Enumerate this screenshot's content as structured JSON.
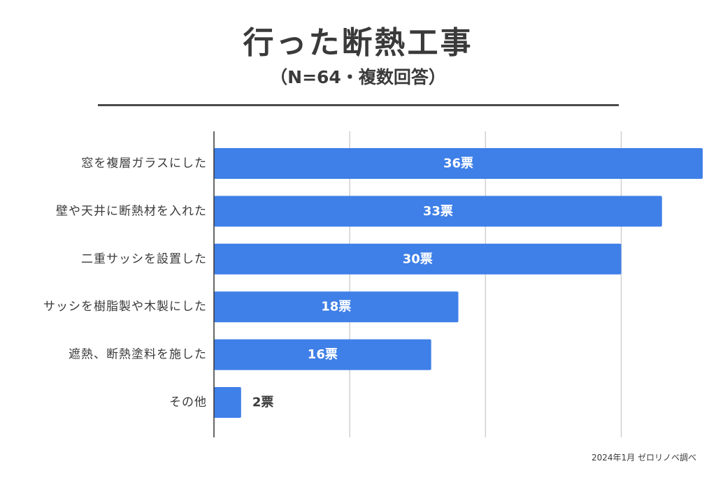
{
  "title": "行った断熱工事",
  "subtitle": "（N=64・複数回答）",
  "source": "2024年1月 ゼロリノベ調べ",
  "colors": {
    "bar": "#3f7fe8",
    "grid": "#d0d0d0",
    "axis": "#333333",
    "text": "#3a3a3a"
  },
  "chart_data": {
    "type": "bar",
    "orientation": "horizontal",
    "categories": [
      "窓を複層ガラスにした",
      "壁や天井に断熱材を入れた",
      "二重サッシを設置した",
      "サッシを樹脂製や木製にした",
      "遮熱、断熱塗料を施した",
      "その他"
    ],
    "values": [
      36,
      33,
      30,
      18,
      16,
      2
    ],
    "value_labels": [
      "36票",
      "33票",
      "30票",
      "18票",
      "16票",
      "2票"
    ],
    "xlim": [
      0,
      36
    ],
    "grid": true
  }
}
